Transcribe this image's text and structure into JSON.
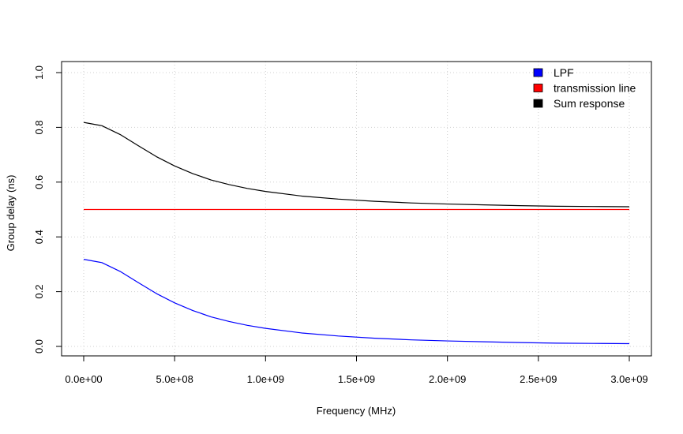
{
  "chart_data": {
    "type": "line",
    "title": "",
    "xlabel": "Frequency (MHz)",
    "ylabel": "Group delay (ns)",
    "xlim": [
      0,
      3000000000
    ],
    "ylim": [
      0,
      1
    ],
    "grid": true,
    "legend_position": "top-right",
    "x_ticks": [
      0,
      500000000,
      1000000000,
      1500000000,
      2000000000,
      2500000000,
      3000000000
    ],
    "x_tick_labels": [
      "0.0e+00",
      "5.0e+08",
      "1.0e+09",
      "1.5e+09",
      "2.0e+09",
      "2.5e+09",
      "3.0e+09"
    ],
    "y_ticks": [
      0,
      0.2,
      0.4,
      0.6,
      0.8,
      1.0
    ],
    "y_tick_labels": [
      "0.0",
      "0.2",
      "0.4",
      "0.6",
      "0.8",
      "1.0"
    ],
    "x": [
      0,
      100000000,
      200000000,
      300000000,
      400000000,
      500000000,
      600000000,
      700000000,
      800000000,
      900000000,
      1000000000,
      1200000000,
      1400000000,
      1600000000,
      1800000000,
      2000000000,
      2200000000,
      2400000000,
      2600000000,
      2800000000,
      3000000000
    ],
    "series": [
      {
        "name": "LPF",
        "color": "#0000ff",
        "values": [
          0.318,
          0.306,
          0.274,
          0.233,
          0.193,
          0.159,
          0.131,
          0.108,
          0.091,
          0.077,
          0.066,
          0.049,
          0.038,
          0.03,
          0.024,
          0.02,
          0.017,
          0.014,
          0.012,
          0.011,
          0.01
        ]
      },
      {
        "name": "transmission line",
        "color": "#ff0000",
        "values": [
          0.5,
          0.5,
          0.5,
          0.5,
          0.5,
          0.5,
          0.5,
          0.5,
          0.5,
          0.5,
          0.5,
          0.5,
          0.5,
          0.5,
          0.5,
          0.5,
          0.5,
          0.5,
          0.5,
          0.5,
          0.5
        ]
      },
      {
        "name": "Sum response",
        "color": "#000000",
        "values": [
          0.818,
          0.806,
          0.774,
          0.733,
          0.693,
          0.659,
          0.631,
          0.608,
          0.591,
          0.577,
          0.566,
          0.549,
          0.538,
          0.53,
          0.524,
          0.52,
          0.517,
          0.514,
          0.512,
          0.511,
          0.51
        ]
      }
    ]
  }
}
